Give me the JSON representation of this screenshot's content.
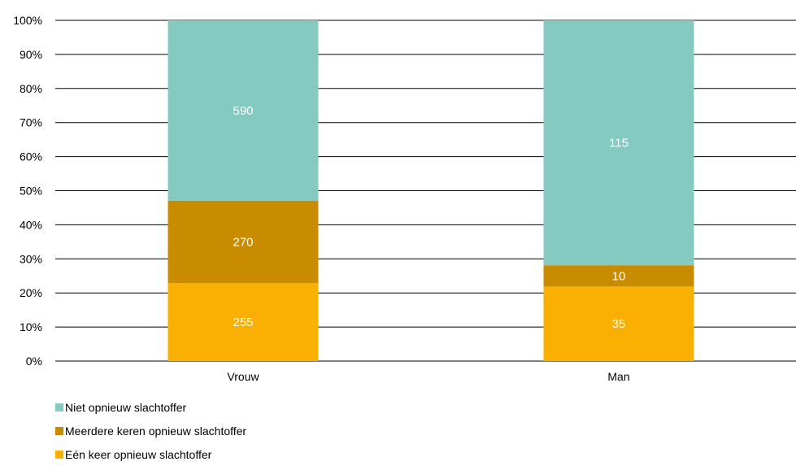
{
  "chart_data": {
    "type": "bar",
    "stacked": "percent",
    "categories": [
      "Vrouw",
      "Man"
    ],
    "series": [
      {
        "name": "Eén keer opnieuw slachtoffer",
        "values": [
          255,
          35
        ],
        "color": "#F9B000"
      },
      {
        "name": "Meerdere keren opnieuw slachtoffer",
        "values": [
          270,
          10
        ],
        "color": "#C98C00"
      },
      {
        "name": "Niet opnieuw slachtoffer",
        "values": [
          590,
          115
        ],
        "color": "#85CAC0"
      }
    ],
    "ylim": [
      0,
      100
    ],
    "yticks": [
      "0%",
      "10%",
      "20%",
      "30%",
      "40%",
      "50%",
      "60%",
      "70%",
      "80%",
      "90%",
      "100%"
    ],
    "grid": true,
    "legend_position": "bottom-left",
    "legend_order": [
      2,
      1,
      0
    ]
  }
}
